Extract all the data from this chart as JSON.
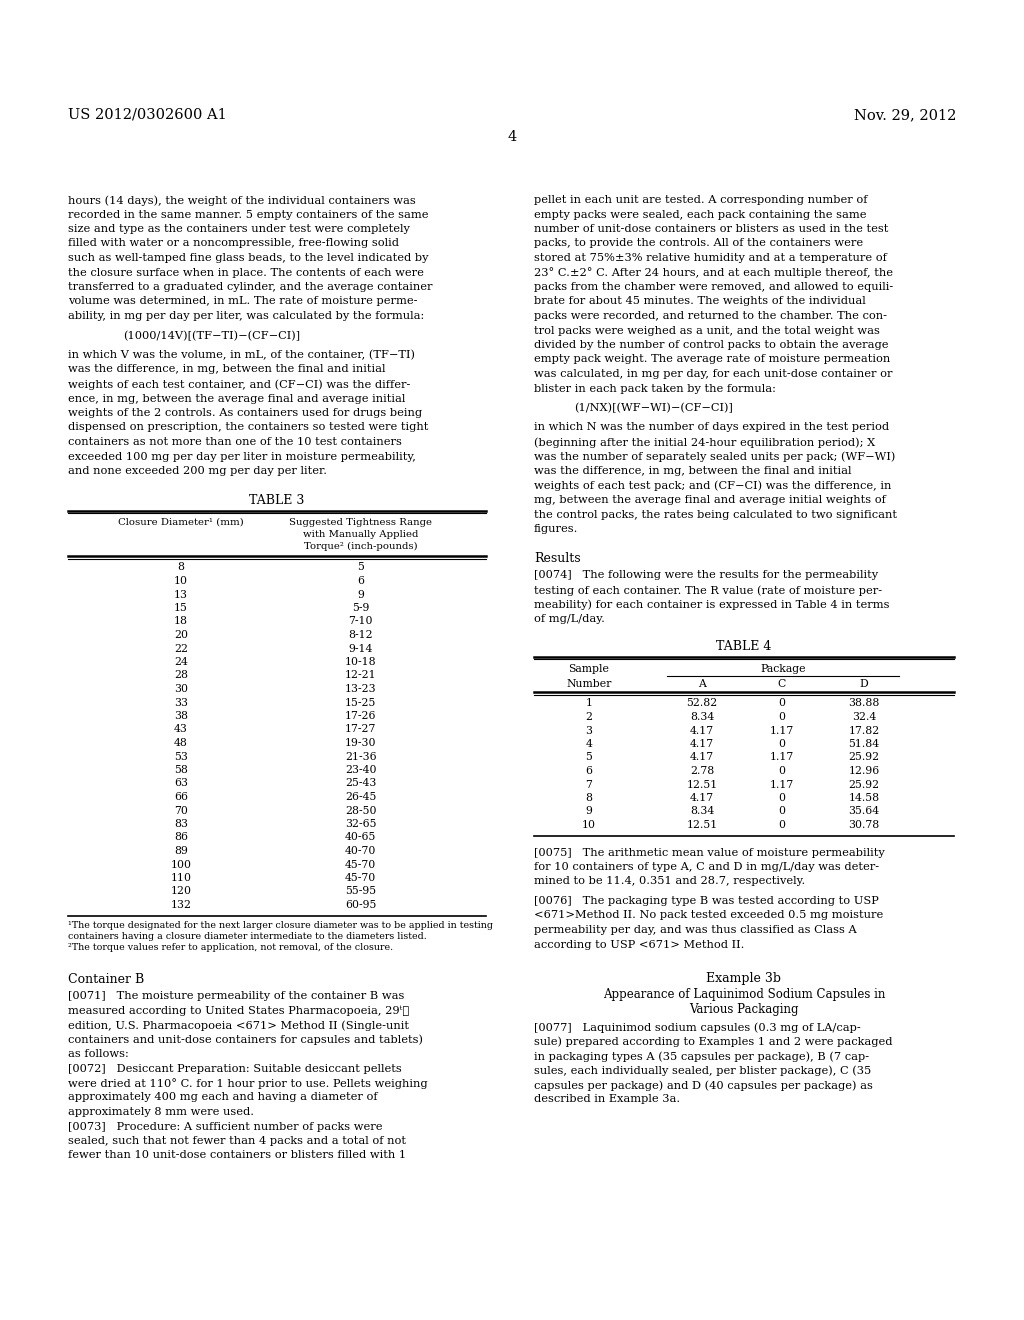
{
  "bg_color": "#ffffff",
  "header_left": "US 2012/0302600 A1",
  "header_right": "Nov. 29, 2012",
  "page_number": "4",
  "left_col_lines": [
    "hours (14 days), the weight of the individual containers was",
    "recorded in the same manner. 5 empty containers of the same",
    "size and type as the containers under test were completely",
    "filled with water or a noncompressible, free-flowing solid",
    "such as well-tamped fine glass beads, to the level indicated by",
    "the closure surface when in place. The contents of each were",
    "transferred to a graduated cylinder, and the average container",
    "volume was determined, in mL. The rate of moisture perme-",
    "ability, in mg per day per liter, was calculated by the formula:"
  ],
  "formula_left": "(1000/14V)[(TF−TI)−(CF−CI)]",
  "left_col_lines2": [
    "in which V was the volume, in mL, of the container, (TF−TI)",
    "was the difference, in mg, between the final and initial",
    "weights of each test container, and (CF−CI) was the differ-",
    "ence, in mg, between the average final and average initial",
    "weights of the 2 controls. As containers used for drugs being",
    "dispensed on prescription, the containers so tested were tight",
    "containers as not more than one of the 10 test containers",
    "exceeded 100 mg per day per liter in moisture permeability,",
    "and none exceeded 200 mg per day per liter."
  ],
  "table3_title": "TABLE 3",
  "table3_col1_header": "Closure Diameter¹ (mm)",
  "table3_col2_h1": "Suggested Tightness Range",
  "table3_col2_h2": "with Manually Applied",
  "table3_col2_h3": "Torque² (inch-pounds)",
  "table3_data": [
    [
      "8",
      "5"
    ],
    [
      "10",
      "6"
    ],
    [
      "13",
      "9"
    ],
    [
      "15",
      "5-9"
    ],
    [
      "18",
      "7-10"
    ],
    [
      "20",
      "8-12"
    ],
    [
      "22",
      "9-14"
    ],
    [
      "24",
      "10-18"
    ],
    [
      "28",
      "12-21"
    ],
    [
      "30",
      "13-23"
    ],
    [
      "33",
      "15-25"
    ],
    [
      "38",
      "17-26"
    ],
    [
      "43",
      "17-27"
    ],
    [
      "48",
      "19-30"
    ],
    [
      "53",
      "21-36"
    ],
    [
      "58",
      "23-40"
    ],
    [
      "63",
      "25-43"
    ],
    [
      "66",
      "26-45"
    ],
    [
      "70",
      "28-50"
    ],
    [
      "83",
      "32-65"
    ],
    [
      "86",
      "40-65"
    ],
    [
      "89",
      "40-70"
    ],
    [
      "100",
      "45-70"
    ],
    [
      "110",
      "45-70"
    ],
    [
      "120",
      "55-95"
    ],
    [
      "132",
      "60-95"
    ]
  ],
  "table3_fn1a": "¹The torque designated for the next larger closure diameter was to be applied in testing",
  "table3_fn1b": "containers having a closure diameter intermediate to the diameters listed.",
  "table3_fn2": "²The torque values refer to application, not removal, of the closure.",
  "container_b_header": "Container B",
  "cb_para1_lines": [
    "[0071]   The moisture permeability of the container B was",
    "measured according to United States Pharmacopoeia, 29ᵗ˾",
    "edition, U.S. Pharmacopoeia <671> Method II (Single-unit",
    "containers and unit-dose containers for capsules and tablets)",
    "as follows:"
  ],
  "cb_para2_lines": [
    "[0072]   Desiccant Preparation: Suitable desiccant pellets",
    "were dried at 110° C. for 1 hour prior to use. Pellets weighing",
    "approximately 400 mg each and having a diameter of",
    "approximately 8 mm were used."
  ],
  "cb_para3_lines": [
    "[0073]   Procedure: A sufficient number of packs were",
    "sealed, such that not fewer than 4 packs and a total of not",
    "fewer than 10 unit-dose containers or blisters filled with 1"
  ],
  "right_col_lines": [
    "pellet in each unit are tested. A corresponding number of",
    "empty packs were sealed, each pack containing the same",
    "number of unit-dose containers or blisters as used in the test",
    "packs, to provide the controls. All of the containers were",
    "stored at 75%±3% relative humidity and at a temperature of",
    "23° C.±2° C. After 24 hours, and at each multiple thereof, the",
    "packs from the chamber were removed, and allowed to equili-",
    "brate for about 45 minutes. The weights of the individual",
    "packs were recorded, and returned to the chamber. The con-",
    "trol packs were weighed as a unit, and the total weight was",
    "divided by the number of control packs to obtain the average",
    "empty pack weight. The average rate of moisture permeation",
    "was calculated, in mg per day, for each unit-dose container or",
    "blister in each pack taken by the formula:"
  ],
  "formula_right": "(1/NX)[(WF−WI)−(CF−CI)]",
  "right_col_lines2": [
    "in which N was the number of days expired in the test period",
    "(beginning after the initial 24-hour equilibration period); X",
    "was the number of separately sealed units per pack; (WF−WI)",
    "was the difference, in mg, between the final and initial",
    "weights of each test pack; and (CF−CI) was the difference, in",
    "mg, between the average final and average initial weights of",
    "the control packs, the rates being calculated to two significant",
    "figures."
  ],
  "results_header": "Results",
  "results_para_lines": [
    "[0074]   The following were the results for the permeability",
    "testing of each container. The R value (rate of moisture per-",
    "meability) for each container is expressed in Table 4 in terms",
    "of mg/L/day."
  ],
  "table4_title": "TABLE 4",
  "table4_h_sample": "Sample",
  "table4_h_number": "Number",
  "table4_h_package": "Package",
  "table4_h_a": "A",
  "table4_h_c": "C",
  "table4_h_d": "D",
  "table4_data": [
    [
      "1",
      "52.82",
      "0",
      "38.88"
    ],
    [
      "2",
      "8.34",
      "0",
      "32.4"
    ],
    [
      "3",
      "4.17",
      "1.17",
      "17.82"
    ],
    [
      "4",
      "4.17",
      "0",
      "51.84"
    ],
    [
      "5",
      "4.17",
      "1.17",
      "25.92"
    ],
    [
      "6",
      "2.78",
      "0",
      "12.96"
    ],
    [
      "7",
      "12.51",
      "1.17",
      "25.92"
    ],
    [
      "8",
      "4.17",
      "0",
      "14.58"
    ],
    [
      "9",
      "8.34",
      "0",
      "35.64"
    ],
    [
      "10",
      "12.51",
      "0",
      "30.78"
    ]
  ],
  "rp2_lines": [
    "[0075]   The arithmetic mean value of moisture permeability",
    "for 10 containers of type A, C and D in mg/L/day was deter-",
    "mined to be 11.4, 0.351 and 28.7, respectively."
  ],
  "rp3_lines": [
    "[0076]   The packaging type B was tested according to USP",
    "<671>Method II. No pack tested exceeded 0.5 mg moisture",
    "permeability per day, and was thus classified as Class A",
    "according to USP <671> Method II."
  ],
  "ex3b_header": "Example 3b",
  "ex3b_sub1": "Appearance of Laquinimod Sodium Capsules in",
  "ex3b_sub2": "Various Packaging",
  "rp4_lines": [
    "[0077]   Laquinimod sodium capsules (0.3 mg of LA/cap-",
    "sule) prepared according to Examples 1 and 2 were packaged",
    "in packaging types A (35 capsules per package), B (7 cap-",
    "sules, each individually sealed, per blister package), C (35",
    "capsules per package) and D (40 capsules per package) as",
    "described in Example 3a."
  ]
}
